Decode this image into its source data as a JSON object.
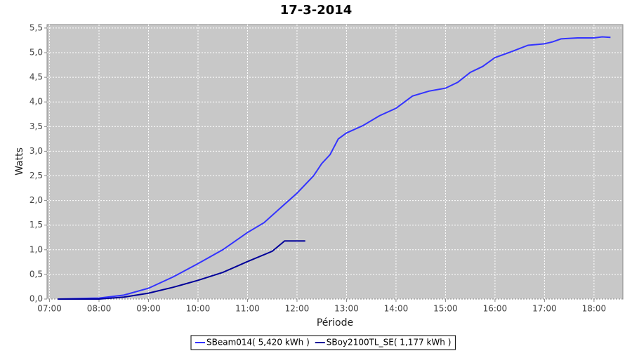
{
  "chart_data": {
    "type": "line",
    "title": "17-3-2014",
    "x_label": "Période",
    "y_label": "Watts",
    "xlim": [
      "06:57",
      "18:35"
    ],
    "xticks": [
      "07:00",
      "08:00",
      "09:00",
      "10:00",
      "11:00",
      "12:00",
      "13:00",
      "14:00",
      "15:00",
      "16:00",
      "17:00",
      "18:00"
    ],
    "ylim": [
      0,
      5.57
    ],
    "yticks": [
      {
        "value": 0,
        "label": "0,0"
      },
      {
        "value": 0.5,
        "label": "0,5"
      },
      {
        "value": 1,
        "label": "1,0"
      },
      {
        "value": 1.5,
        "label": "1,5"
      },
      {
        "value": 2,
        "label": "2,0"
      },
      {
        "value": 2.5,
        "label": "2,5"
      },
      {
        "value": 3,
        "label": "3,0"
      },
      {
        "value": 3.5,
        "label": "3,5"
      },
      {
        "value": 4,
        "label": "4,0"
      },
      {
        "value": 4.5,
        "label": "4,5"
      },
      {
        "value": 5,
        "label": "5,0"
      },
      {
        "value": 5.5,
        "label": "5,5"
      }
    ],
    "grid": true,
    "series": [
      {
        "name": "SBeam014( 5,420 kWh )",
        "color": "#3333ff",
        "x": [
          "07:10",
          "08:00",
          "08:30",
          "09:00",
          "09:30",
          "10:00",
          "10:30",
          "11:00",
          "11:20",
          "11:40",
          "12:00",
          "12:20",
          "12:30",
          "12:40",
          "12:50",
          "13:00",
          "13:20",
          "13:40",
          "14:00",
          "14:20",
          "14:40",
          "15:00",
          "15:15",
          "15:30",
          "15:45",
          "16:00",
          "16:20",
          "16:40",
          "17:00",
          "17:10",
          "17:20",
          "17:40",
          "18:00",
          "18:10",
          "18:20"
        ],
        "values": [
          0,
          0.02,
          0.08,
          0.22,
          0.45,
          0.72,
          1.0,
          1.35,
          1.55,
          1.85,
          2.15,
          2.5,
          2.75,
          2.93,
          3.25,
          3.37,
          3.52,
          3.72,
          3.87,
          4.12,
          4.22,
          4.28,
          4.4,
          4.6,
          4.72,
          4.9,
          5.02,
          5.15,
          5.18,
          5.22,
          5.28,
          5.3,
          5.3,
          5.32,
          5.31
        ]
      },
      {
        "name": "SBoy2100TL_SE( 1,177 kWh )",
        "color": "#000099",
        "x": [
          "07:10",
          "08:00",
          "08:30",
          "09:00",
          "09:30",
          "10:00",
          "10:30",
          "11:00",
          "11:30",
          "11:45",
          "12:10"
        ],
        "values": [
          0,
          0,
          0.04,
          0.12,
          0.24,
          0.38,
          0.54,
          0.76,
          0.97,
          1.18,
          1.18
        ]
      }
    ]
  }
}
